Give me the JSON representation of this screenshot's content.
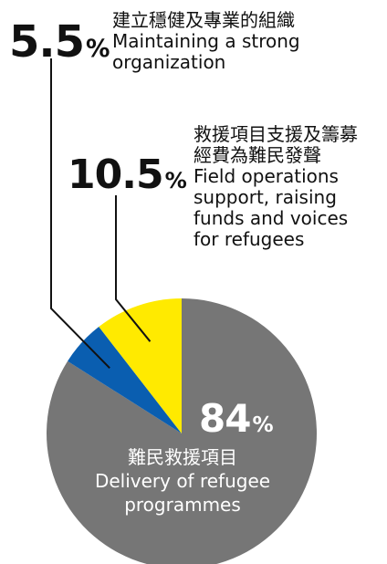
{
  "chart_data": {
    "type": "pie",
    "title": "",
    "slices": [
      {
        "value": 84,
        "value_label": "84",
        "label_zh": "難民救援項目",
        "label_en_lines": [
          "Delivery of refugee",
          "programmes"
        ],
        "color": "#767676"
      },
      {
        "value": 5.5,
        "value_label": "5.5",
        "label_zh": "建立穩健及專業的組織",
        "label_en_lines": [
          "Maintaining a strong",
          "organization"
        ],
        "color": "#0a5eb0"
      },
      {
        "value": 10.5,
        "value_label": "10.5",
        "label_zh_lines": [
          "救援項目支援及籌募",
          "經費為難民發聲"
        ],
        "label_en_lines": [
          "Field operations",
          "support, raising",
          "funds and voices",
          "for refugees"
        ],
        "color": "#ffea00"
      }
    ],
    "percent_sign": "%",
    "legend": "none"
  }
}
